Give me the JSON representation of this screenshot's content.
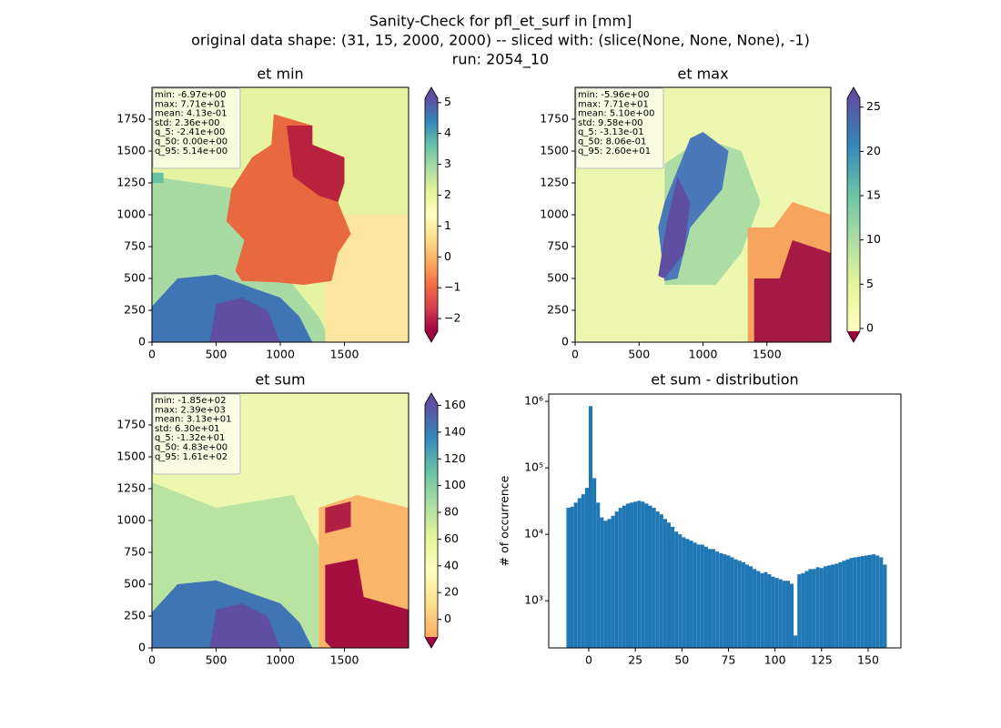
{
  "figure_title": [
    "Sanity-Check for pfl_et_surf in [mm]",
    "original data shape: (31, 15, 2000, 2000) -- sliced with: (slice(None, None, None), -1)",
    "run: 2054_10"
  ],
  "chart_data": [
    {
      "type": "heatmap",
      "title": "et min",
      "xlim": [
        0,
        2000
      ],
      "ylim": [
        0,
        2000
      ],
      "xticks": [
        0,
        500,
        1000,
        1500
      ],
      "yticks": [
        0,
        250,
        500,
        750,
        1000,
        1250,
        1500,
        1750
      ],
      "stats": [
        "min: -6.97e+00",
        "max: 7.71e+01",
        "mean: 4.13e-01",
        "std: 2.36e+00",
        "q_5: -2.41e+00",
        "q_50: 0.00e+00",
        "q_95: 5.14e+00"
      ],
      "clim": [
        -2.41,
        5.14
      ],
      "cticks": [
        {
          "value": -2,
          "label": "−2"
        },
        {
          "value": -1,
          "label": "−1"
        },
        0,
        1,
        2,
        3,
        4,
        5
      ],
      "colors": [
        "#9e0142",
        "#d53e4f",
        "#f46d43",
        "#fdae61",
        "#fee08b",
        "#ffffbf",
        "#e6f598",
        "#abdda4",
        "#66c2a5",
        "#3288bd",
        "#5e4fa2"
      ],
      "under_color": "#9e0142",
      "over_color": "#5e4fa2"
    },
    {
      "type": "heatmap",
      "title": "et max",
      "xlim": [
        0,
        2000
      ],
      "ylim": [
        0,
        2000
      ],
      "xticks": [
        0,
        500,
        1000,
        1500
      ],
      "yticks": [
        0,
        250,
        500,
        750,
        1000,
        1250,
        1500,
        1750
      ],
      "stats": [
        "min: -5.96e+00",
        "max: 7.71e+01",
        "mean: 5.10e+00",
        "std: 9.58e+00",
        "q_5: -3.13e-01",
        "q_50: 8.06e-01",
        "q_95: 2.60e+01"
      ],
      "clim": [
        -0.313,
        26.0
      ],
      "cticks": [
        0,
        5,
        10,
        15,
        20,
        25
      ],
      "colors": [
        "#ffffbf",
        "#e6f598",
        "#abdda4",
        "#66c2a5",
        "#3288bd",
        "#5e4fa2"
      ],
      "under_color": "#9e0142",
      "over_color": "#5e4fa2"
    },
    {
      "type": "heatmap",
      "title": "et sum",
      "xlim": [
        0,
        2000
      ],
      "ylim": [
        0,
        2000
      ],
      "xticks": [
        0,
        500,
        1000,
        1500
      ],
      "yticks": [
        0,
        250,
        500,
        750,
        1000,
        1250,
        1500,
        1750
      ],
      "stats": [
        "min: -1.85e+02",
        "max: 2.39e+03",
        "mean: 3.13e+01",
        "std: 6.30e+01",
        "q_5: -1.32e+01",
        "q_50: 4.83e+00",
        "q_95: 1.61e+02"
      ],
      "clim": [
        -13.2,
        161
      ],
      "cticks": [
        0,
        20,
        40,
        60,
        80,
        100,
        120,
        140,
        160
      ],
      "colors": [
        "#fdae61",
        "#fee08b",
        "#ffffbf",
        "#e6f598",
        "#abdda4",
        "#66c2a5",
        "#3288bd",
        "#5e4fa2"
      ],
      "under_color": "#9e0142",
      "over_color": "#5e4fa2"
    },
    {
      "type": "histogram",
      "title": "et sum - distribution",
      "ylabel": "# of occurrence",
      "log_y": true,
      "color": "#1f77b4",
      "xlim": [
        -21.5,
        167.6
      ],
      "ylim": [
        195,
        1290000
      ],
      "xticks": [
        0,
        25,
        50,
        75,
        100,
        125,
        150
      ],
      "yticks": [
        {
          "value": 1000,
          "label": "10³"
        },
        {
          "value": 10000,
          "label": "10⁴"
        },
        {
          "value": 100000,
          "label": "10⁵"
        },
        {
          "value": 1000000,
          "label": "10⁶"
        }
      ],
      "bins": [
        -12,
        -10,
        -8,
        -6,
        -4,
        -2,
        0,
        2,
        4,
        6,
        8,
        10,
        12,
        14,
        16,
        18,
        20,
        22,
        24,
        26,
        28,
        30,
        32,
        34,
        36,
        38,
        40,
        42,
        44,
        46,
        48,
        50,
        52,
        54,
        56,
        58,
        60,
        62,
        64,
        66,
        68,
        70,
        72,
        74,
        76,
        78,
        80,
        82,
        84,
        86,
        88,
        90,
        92,
        94,
        96,
        98,
        100,
        102,
        104,
        106,
        108,
        110,
        112,
        114,
        116,
        118,
        120,
        122,
        124,
        126,
        128,
        130,
        132,
        134,
        136,
        138,
        140,
        142,
        144,
        146,
        148,
        150,
        152,
        154,
        156,
        158,
        160
      ],
      "counts": [
        25000,
        26000,
        30000,
        35000,
        40000,
        50000,
        850000,
        70000,
        30000,
        18000,
        16000,
        17000,
        19000,
        22000,
        25000,
        27000,
        29000,
        30000,
        31000,
        32000,
        31000,
        29000,
        27000,
        25000,
        22000,
        20000,
        17000,
        15000,
        13000,
        11000,
        10000,
        9000,
        8500,
        8000,
        7500,
        7000,
        7000,
        6500,
        6000,
        6000,
        5500,
        5200,
        5000,
        4800,
        4500,
        4200,
        4000,
        3800,
        3500,
        3300,
        3000,
        2800,
        2600,
        2700,
        2500,
        2300,
        2200,
        2100,
        2000,
        2000,
        1800,
        300,
        2500,
        2600,
        2800,
        3000,
        3000,
        3200,
        3100,
        3300,
        3400,
        3500,
        3600,
        3800,
        4000,
        4200,
        4400,
        4500,
        4600,
        4700,
        4800,
        4900,
        5000,
        4800,
        4500,
        3500
      ]
    }
  ]
}
